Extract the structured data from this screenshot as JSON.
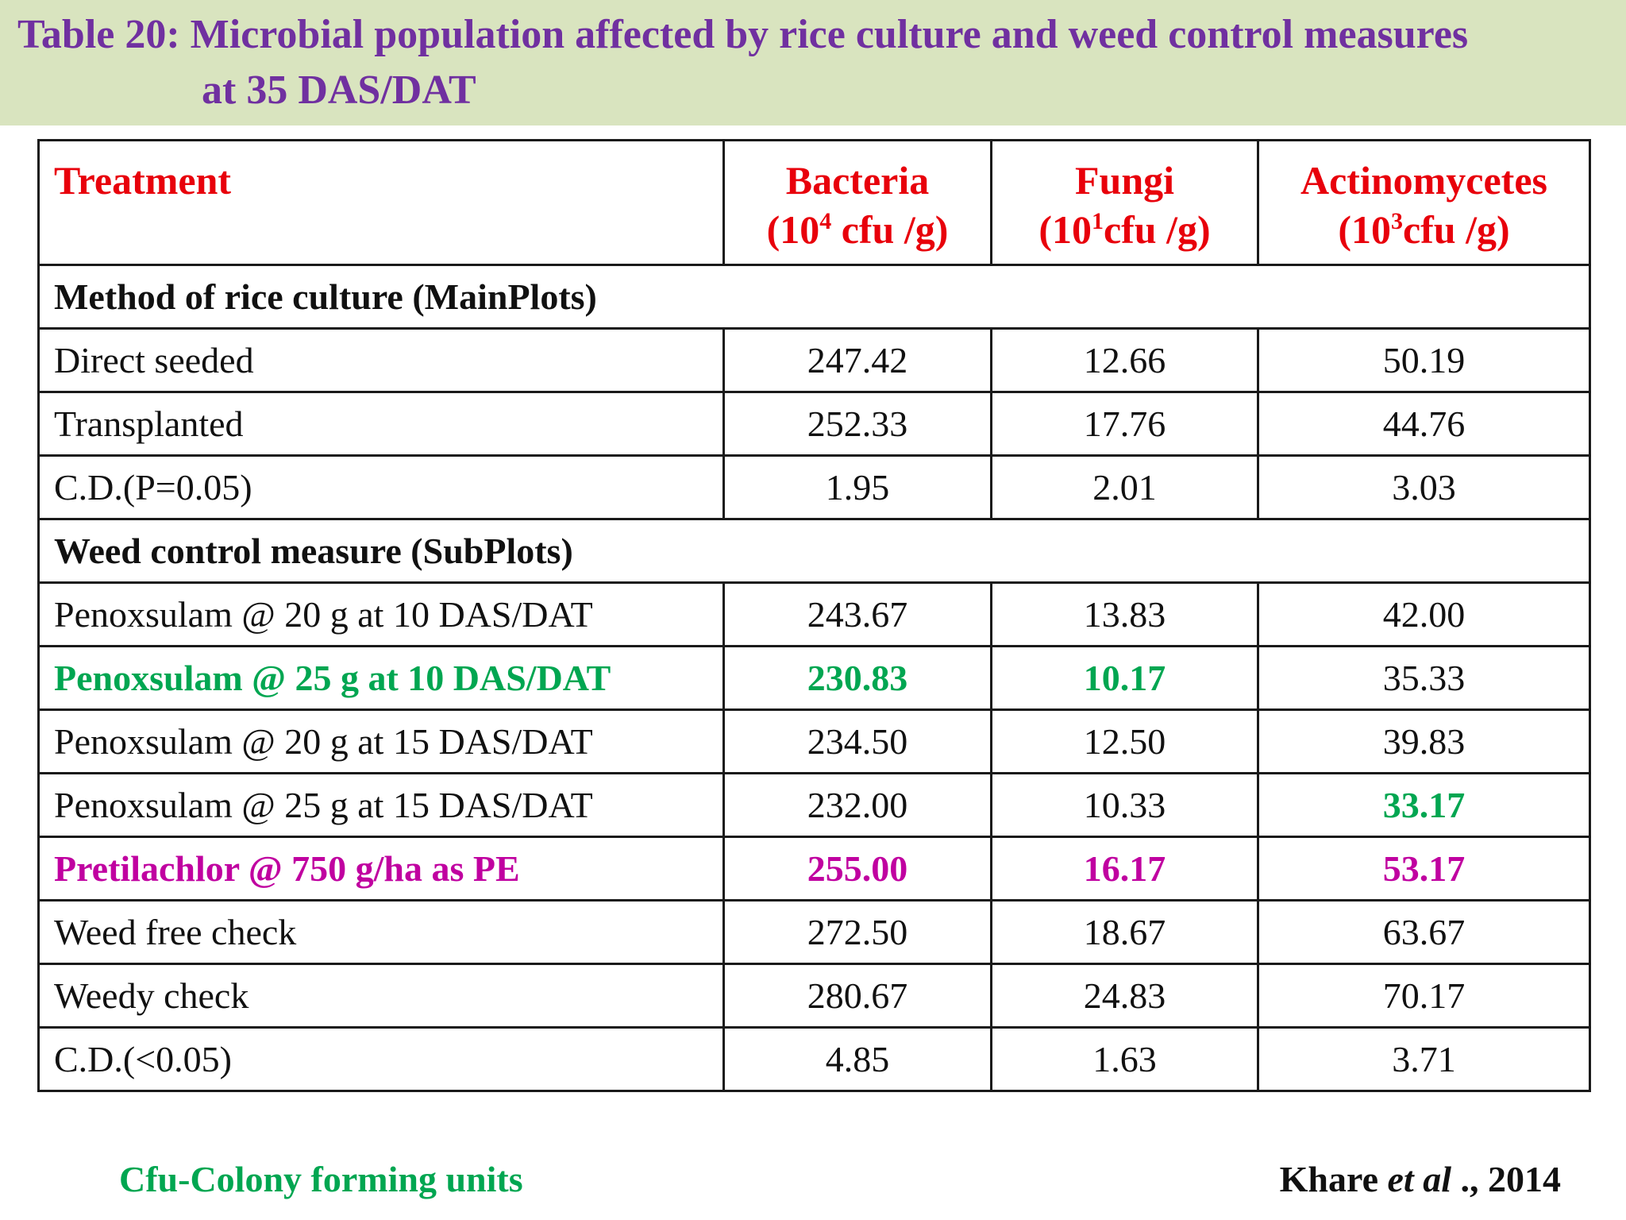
{
  "title": {
    "line1": "Table 20: Microbial population affected by rice culture and weed control measures",
    "line2": "at 35 DAS/DAT"
  },
  "header": {
    "treatment": "Treatment",
    "bacteria": {
      "name": "Bacteria",
      "unit_pre": "(10",
      "unit_sup": "4",
      "unit_post": " cfu /g)"
    },
    "fungi": {
      "name": "Fungi",
      "unit_pre": "(10",
      "unit_sup": "1",
      "unit_post": "cfu /g)"
    },
    "actino": {
      "name": "Actinomycetes",
      "unit_pre": "(10",
      "unit_sup": "3",
      "unit_post": "cfu /g)"
    }
  },
  "sections": {
    "main": "Method of rice culture (MainPlots)",
    "sub": "Weed control measure (SubPlots)"
  },
  "rows": [
    {
      "treatment": "Direct seeded",
      "bacteria": "247.42",
      "fungi": "12.66",
      "actino": "50.19"
    },
    {
      "treatment": "Transplanted",
      "bacteria": "252.33",
      "fungi": "17.76",
      "actino": "44.76"
    },
    {
      "treatment": "C.D.(P=0.05)",
      "bacteria": "1.95",
      "fungi": "2.01",
      "actino": "3.03"
    },
    {
      "treatment": "Penoxsulam @ 20 g at 10 DAS/DAT",
      "bacteria": "243.67",
      "fungi": "13.83",
      "actino": "42.00"
    },
    {
      "treatment": "Penoxsulam @ 25 g at 10 DAS/DAT",
      "bacteria": "230.83",
      "fungi": "10.17",
      "actino": "35.33"
    },
    {
      "treatment": "Penoxsulam @ 20 g at 15 DAS/DAT",
      "bacteria": "234.50",
      "fungi": "12.50",
      "actino": "39.83"
    },
    {
      "treatment": "Penoxsulam @ 25 g at 15 DAS/DAT",
      "bacteria": "232.00",
      "fungi": "10.33",
      "actino": "33.17"
    },
    {
      "treatment": "Pretilachlor @  750 g/ha as PE",
      "bacteria": "255.00",
      "fungi": "16.17",
      "actino": "53.17"
    },
    {
      "treatment": "Weed free check",
      "bacteria": "272.50",
      "fungi": "18.67",
      "actino": "63.67"
    },
    {
      "treatment": "Weedy check",
      "bacteria": "280.67",
      "fungi": "24.83",
      "actino": "70.17"
    },
    {
      "treatment": "C.D.(<0.05)",
      "bacteria": "4.85",
      "fungi": "1.63",
      "actino": "3.71"
    }
  ],
  "colors": {
    "title": "#7030a0",
    "header": "#e8000b",
    "highlight_green": "#00a651",
    "highlight_magenta": "#c000a0",
    "title_bg": "#d9e4bf"
  },
  "footnote": "Cfu-Colony forming units",
  "citation": {
    "author": "Khare ",
    "etal": "et al",
    "rest": " ., 2014"
  }
}
